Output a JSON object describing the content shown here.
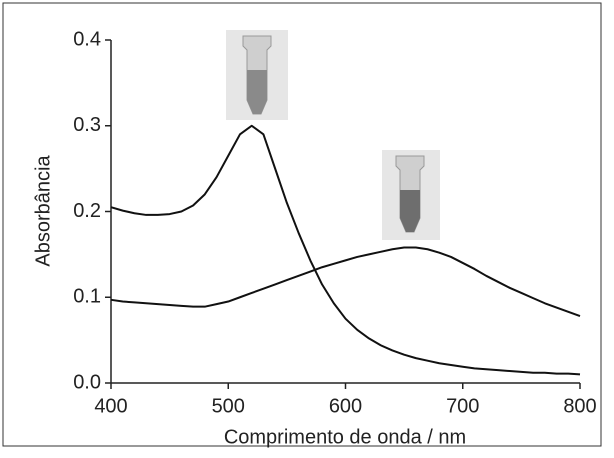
{
  "chart_data": {
    "type": "line",
    "xlabel": "Comprimento de onda / nm",
    "ylabel": "Absorbância",
    "x": [
      400,
      410,
      420,
      430,
      440,
      450,
      460,
      470,
      480,
      490,
      500,
      510,
      520,
      530,
      540,
      550,
      560,
      570,
      580,
      590,
      600,
      610,
      620,
      630,
      640,
      650,
      660,
      670,
      680,
      690,
      700,
      710,
      720,
      730,
      740,
      750,
      760,
      770,
      780,
      790,
      800
    ],
    "series": [
      {
        "color": "#111111",
        "values": [
          0.205,
          0.201,
          0.198,
          0.196,
          0.196,
          0.197,
          0.2,
          0.207,
          0.22,
          0.24,
          0.265,
          0.29,
          0.3,
          0.29,
          0.25,
          0.21,
          0.175,
          0.143,
          0.115,
          0.093,
          0.075,
          0.062,
          0.052,
          0.044,
          0.038,
          0.033,
          0.029,
          0.026,
          0.023,
          0.021,
          0.019,
          0.017,
          0.016,
          0.015,
          0.014,
          0.013,
          0.012,
          0.012,
          0.011,
          0.011,
          0.01
        ]
      },
      {
        "color": "#111111",
        "values": [
          0.097,
          0.095,
          0.094,
          0.093,
          0.092,
          0.091,
          0.09,
          0.089,
          0.089,
          0.092,
          0.095,
          0.1,
          0.105,
          0.11,
          0.115,
          0.12,
          0.125,
          0.13,
          0.135,
          0.139,
          0.143,
          0.147,
          0.15,
          0.153,
          0.156,
          0.158,
          0.158,
          0.156,
          0.152,
          0.147,
          0.14,
          0.133,
          0.125,
          0.118,
          0.111,
          0.105,
          0.099,
          0.093,
          0.088,
          0.083,
          0.078
        ]
      }
    ],
    "xlim": [
      400,
      800
    ],
    "xticks": [
      400,
      500,
      600,
      700,
      800
    ],
    "ylim": [
      0,
      0.4
    ],
    "yticks": [
      {
        "value": 0,
        "label": "0.0"
      },
      0.1,
      0.2,
      0.3,
      0.4
    ]
  }
}
